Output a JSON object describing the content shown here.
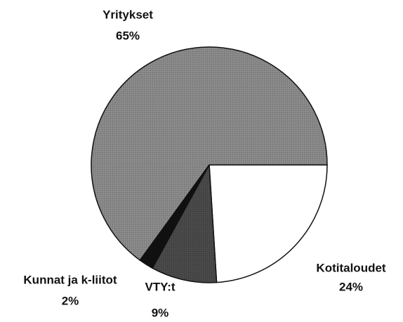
{
  "chart_data": {
    "type": "pie",
    "categories": [
      "Kotitaloudet",
      "VTY:t",
      "Kunnat ja k-liitot",
      "Yritykset"
    ],
    "values": [
      24,
      9,
      2,
      65
    ],
    "value_labels": [
      "24%",
      "9%",
      "2%",
      "65%"
    ],
    "colors": [
      "#ffffff",
      "#4a4a4a",
      "#111111",
      "#8c8c8c"
    ]
  }
}
